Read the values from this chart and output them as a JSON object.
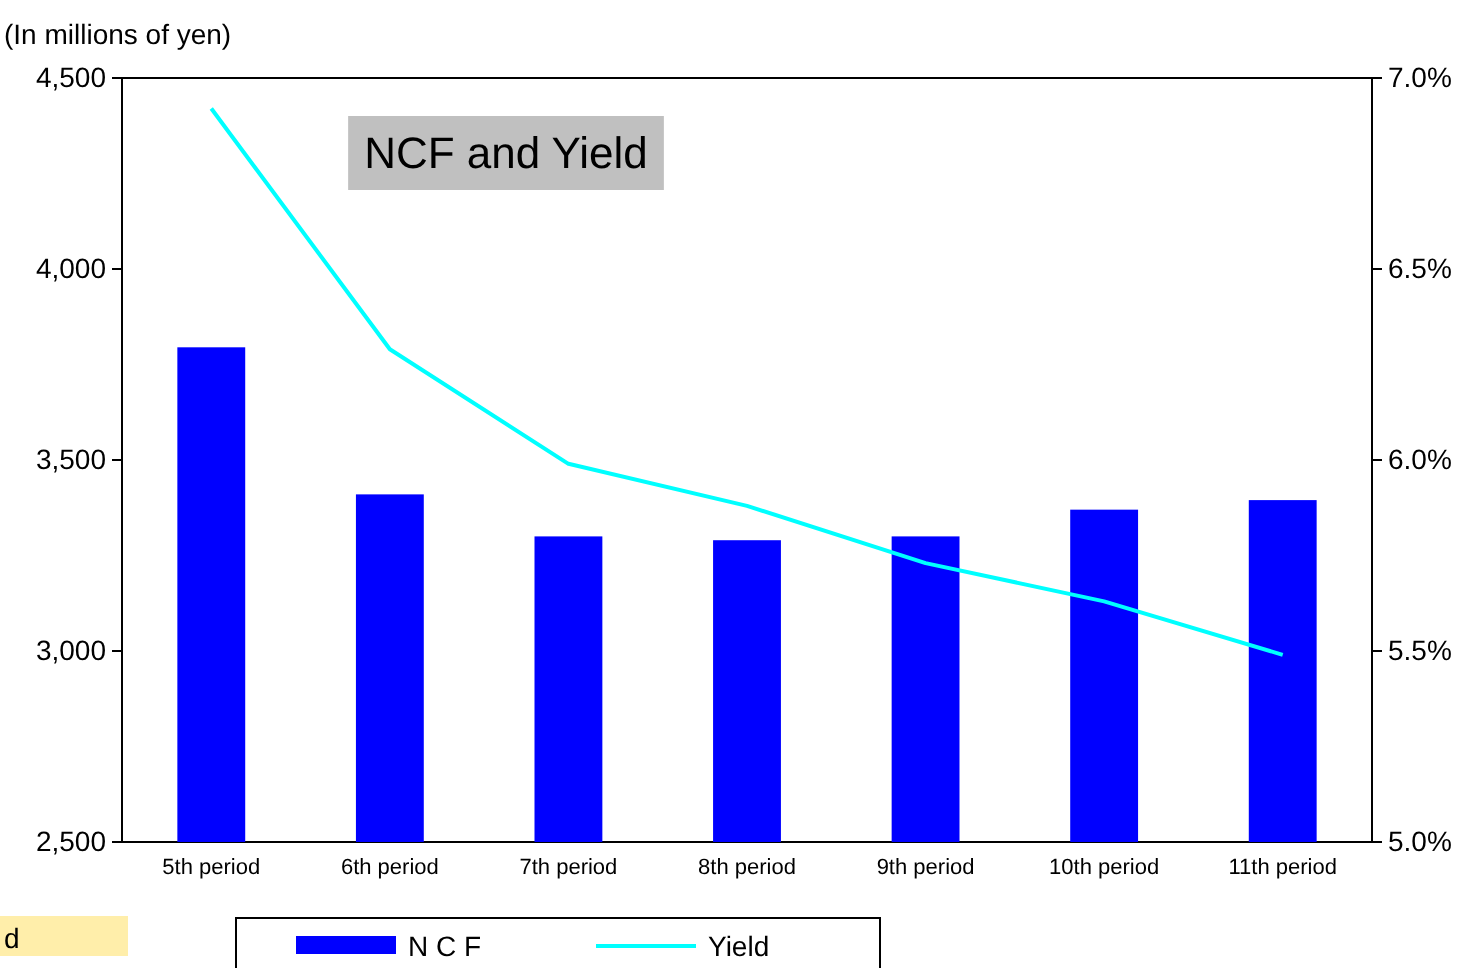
{
  "chart_data": {
    "type": "bar",
    "title": "NCF and Yield",
    "ylabel": "(In millions of yen)",
    "categories": [
      "5th period",
      "6th period",
      "7th period",
      "8th period",
      "9th period",
      "10th period",
      "11th period"
    ],
    "series": [
      {
        "name": "N C F",
        "color": "#0000ff",
        "values": [
          3795,
          3410,
          3300,
          3290,
          3300,
          3370,
          3395
        ]
      },
      {
        "name": "Yield",
        "type": "line",
        "axis": "y2",
        "color": "#00ffff",
        "values": [
          6.92,
          6.29,
          5.99,
          5.88,
          5.73,
          5.63,
          5.49
        ]
      }
    ],
    "ylim": [
      2500,
      4500
    ],
    "yticks": [
      {
        "value": 2500,
        "label": "2,500"
      },
      {
        "value": 3000,
        "label": "3,000"
      },
      {
        "value": 3500,
        "label": "3,500"
      },
      {
        "value": 4000,
        "label": "4,000"
      },
      {
        "value": 4500,
        "label": "4,500"
      }
    ],
    "y2lim": [
      5.0,
      7.0
    ],
    "y2ticks": [
      {
        "value": 5.0,
        "label": "5.0%"
      },
      {
        "value": 5.5,
        "label": "5.5%"
      },
      {
        "value": 6.0,
        "label": "6.0%"
      },
      {
        "value": 6.5,
        "label": "6.5%"
      },
      {
        "value": 7.0,
        "label": "7.0%"
      }
    ],
    "legend": "bottom",
    "marker": "none",
    "annotations": [
      "d"
    ]
  }
}
